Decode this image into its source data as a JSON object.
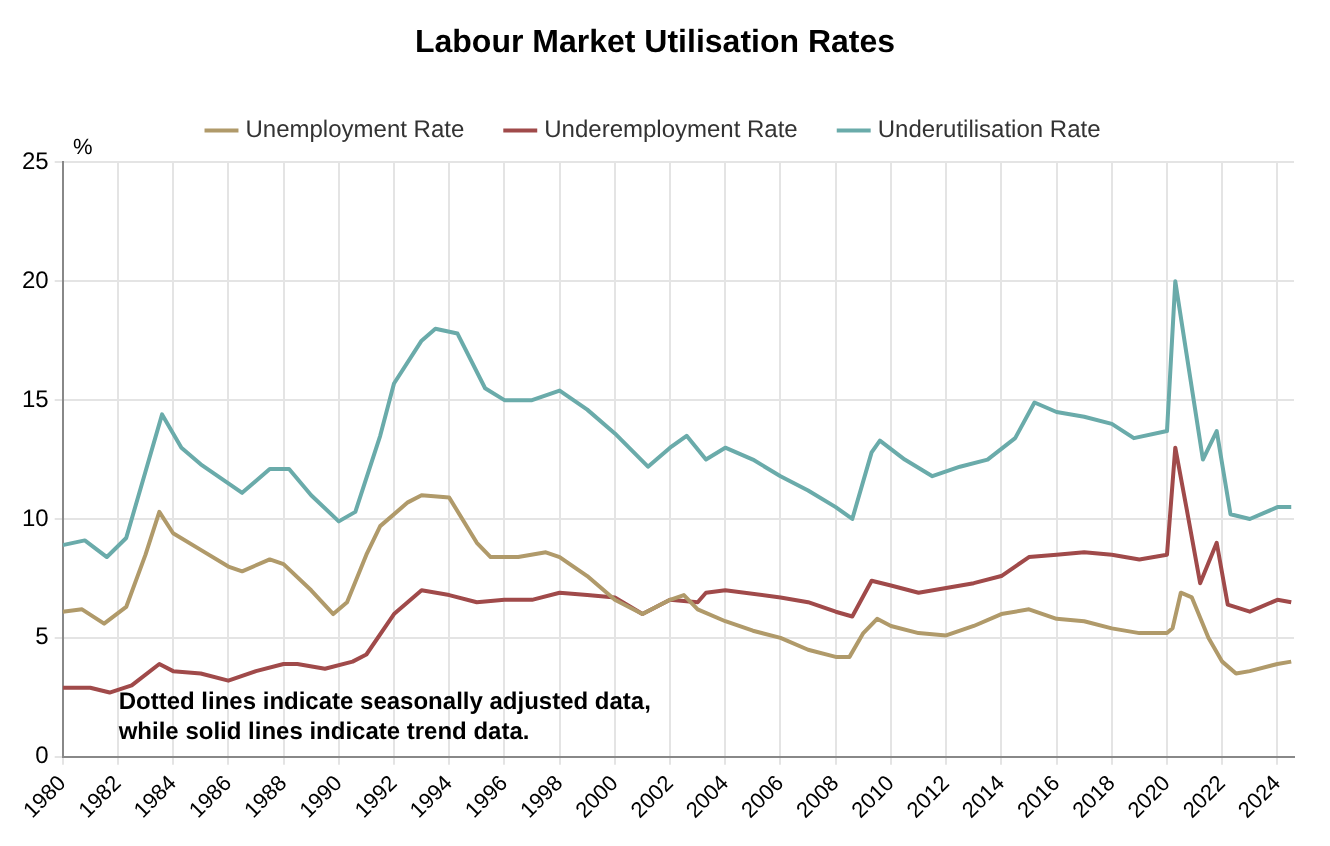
{
  "chart_data": {
    "type": "line",
    "title": "Labour Market Utilisation Rates",
    "ylabel": "%",
    "annotations": [
      "Dotted lines indicate seasonally adjusted data, while solid lines indicate trend data."
    ],
    "xlim": [
      1980,
      2024.6
    ],
    "xticks": [
      1980,
      1982,
      1984,
      1986,
      1988,
      1990,
      1992,
      1994,
      1996,
      1998,
      2000,
      2002,
      2004,
      2006,
      2008,
      2010,
      2012,
      2014,
      2016,
      2018,
      2020,
      2022,
      2024
    ],
    "ylim": [
      0,
      25
    ],
    "yticks": [
      0,
      5,
      10,
      15,
      20,
      25
    ],
    "grid": true,
    "legend": "top",
    "line_style": "solid",
    "marker": "none",
    "series": [
      {
        "name": "Unemployment Rate",
        "color": "#b09a6a",
        "x": [
          1980,
          1980.7,
          1981.5,
          1982.3,
          1983,
          1983.5,
          1984,
          1985,
          1986,
          1986.5,
          1987.5,
          1988,
          1989,
          1989.8,
          1990.3,
          1991,
          1991.5,
          1992.5,
          1993,
          1994,
          1995,
          1995.5,
          1996.5,
          1997.5,
          1998,
          1999,
          2000,
          2001,
          2002,
          2002.5,
          2003,
          2004,
          2005,
          2006,
          2007,
          2008,
          2008.5,
          2009,
          2009.5,
          2010,
          2011,
          2012,
          2013,
          2014,
          2015,
          2016,
          2017,
          2018,
          2019,
          2020,
          2020.2,
          2020.5,
          2020.9,
          2021.5,
          2022,
          2022.5,
          2023,
          2024,
          2024.5
        ],
        "values": [
          6.1,
          6.2,
          5.6,
          6.3,
          8.5,
          10.3,
          9.4,
          8.7,
          8.0,
          7.8,
          8.3,
          8.1,
          7.0,
          6.0,
          6.5,
          8.5,
          9.7,
          10.7,
          11.0,
          10.9,
          9.0,
          8.4,
          8.4,
          8.6,
          8.4,
          7.6,
          6.6,
          6.0,
          6.6,
          6.8,
          6.2,
          5.7,
          5.3,
          5.0,
          4.5,
          4.2,
          4.2,
          5.2,
          5.8,
          5.5,
          5.2,
          5.1,
          5.5,
          6.0,
          6.2,
          5.8,
          5.7,
          5.4,
          5.2,
          5.2,
          5.4,
          6.9,
          6.7,
          5.0,
          4.0,
          3.5,
          3.6,
          3.9,
          4.0
        ]
      },
      {
        "name": "Underemployment Rate",
        "color": "#a04a4a",
        "x": [
          1980,
          1981,
          1981.7,
          1982.5,
          1983.5,
          1984,
          1985,
          1986,
          1987,
          1988,
          1988.5,
          1989.5,
          1990.5,
          1991,
          1992,
          1993,
          1994,
          1995,
          1996,
          1997,
          1998,
          1999,
          2000,
          2001,
          2002,
          2003,
          2003.3,
          2004,
          2006,
          2007,
          2008,
          2008.6,
          2009.3,
          2010,
          2011,
          2012,
          2013,
          2014,
          2014.5,
          2015,
          2016,
          2017,
          2018,
          2019,
          2020,
          2020.3,
          2020.7,
          2021.2,
          2021.8,
          2022.2,
          2023,
          2024,
          2024.5
        ],
        "values": [
          2.9,
          2.9,
          2.7,
          3.0,
          3.9,
          3.6,
          3.5,
          3.2,
          3.6,
          3.9,
          3.9,
          3.7,
          4.0,
          4.3,
          6.0,
          7.0,
          6.8,
          6.5,
          6.6,
          6.6,
          6.9,
          6.8,
          6.7,
          6.0,
          6.6,
          6.5,
          6.9,
          7.0,
          6.7,
          6.5,
          6.1,
          5.9,
          7.4,
          7.2,
          6.9,
          7.1,
          7.3,
          7.6,
          8.0,
          8.4,
          8.5,
          8.6,
          8.5,
          8.3,
          8.5,
          13.0,
          10.5,
          7.3,
          9.0,
          6.4,
          6.1,
          6.6,
          6.5
        ]
      },
      {
        "name": "Underutilisation Rate",
        "color": "#6aabaa",
        "x": [
          1980,
          1980.8,
          1981.6,
          1982.3,
          1983,
          1983.6,
          1984.3,
          1985,
          1986,
          1986.5,
          1987.5,
          1988.2,
          1989,
          1990,
          1990.6,
          1991.5,
          1992,
          1993,
          1993.5,
          1994.3,
          1995.3,
          1996,
          1997,
          1998,
          1999,
          2000,
          2001.2,
          2002,
          2002.6,
          2003.3,
          2004,
          2005,
          2006,
          2007,
          2008,
          2008.6,
          2009.3,
          2009.6,
          2010.5,
          2011.5,
          2012.5,
          2013.5,
          2014.5,
          2015.2,
          2016,
          2017,
          2018,
          2018.8,
          2020,
          2020.3,
          2020.7,
          2021.3,
          2021.8,
          2022.3,
          2023,
          2024,
          2024.5
        ],
        "values": [
          8.9,
          9.1,
          8.4,
          9.2,
          12.0,
          14.4,
          13.0,
          12.3,
          11.5,
          11.1,
          12.1,
          12.1,
          11.0,
          9.9,
          10.3,
          13.5,
          15.7,
          17.5,
          18.0,
          17.8,
          15.5,
          15.0,
          15.0,
          15.4,
          14.6,
          13.6,
          12.2,
          13.0,
          13.5,
          12.5,
          13.0,
          12.5,
          11.8,
          11.2,
          10.5,
          10.0,
          12.8,
          13.3,
          12.5,
          11.8,
          12.2,
          12.5,
          13.4,
          14.9,
          14.5,
          14.3,
          14.0,
          13.4,
          13.7,
          20.0,
          17.0,
          12.5,
          13.7,
          10.2,
          10.0,
          10.5,
          10.5
        ]
      }
    ]
  }
}
